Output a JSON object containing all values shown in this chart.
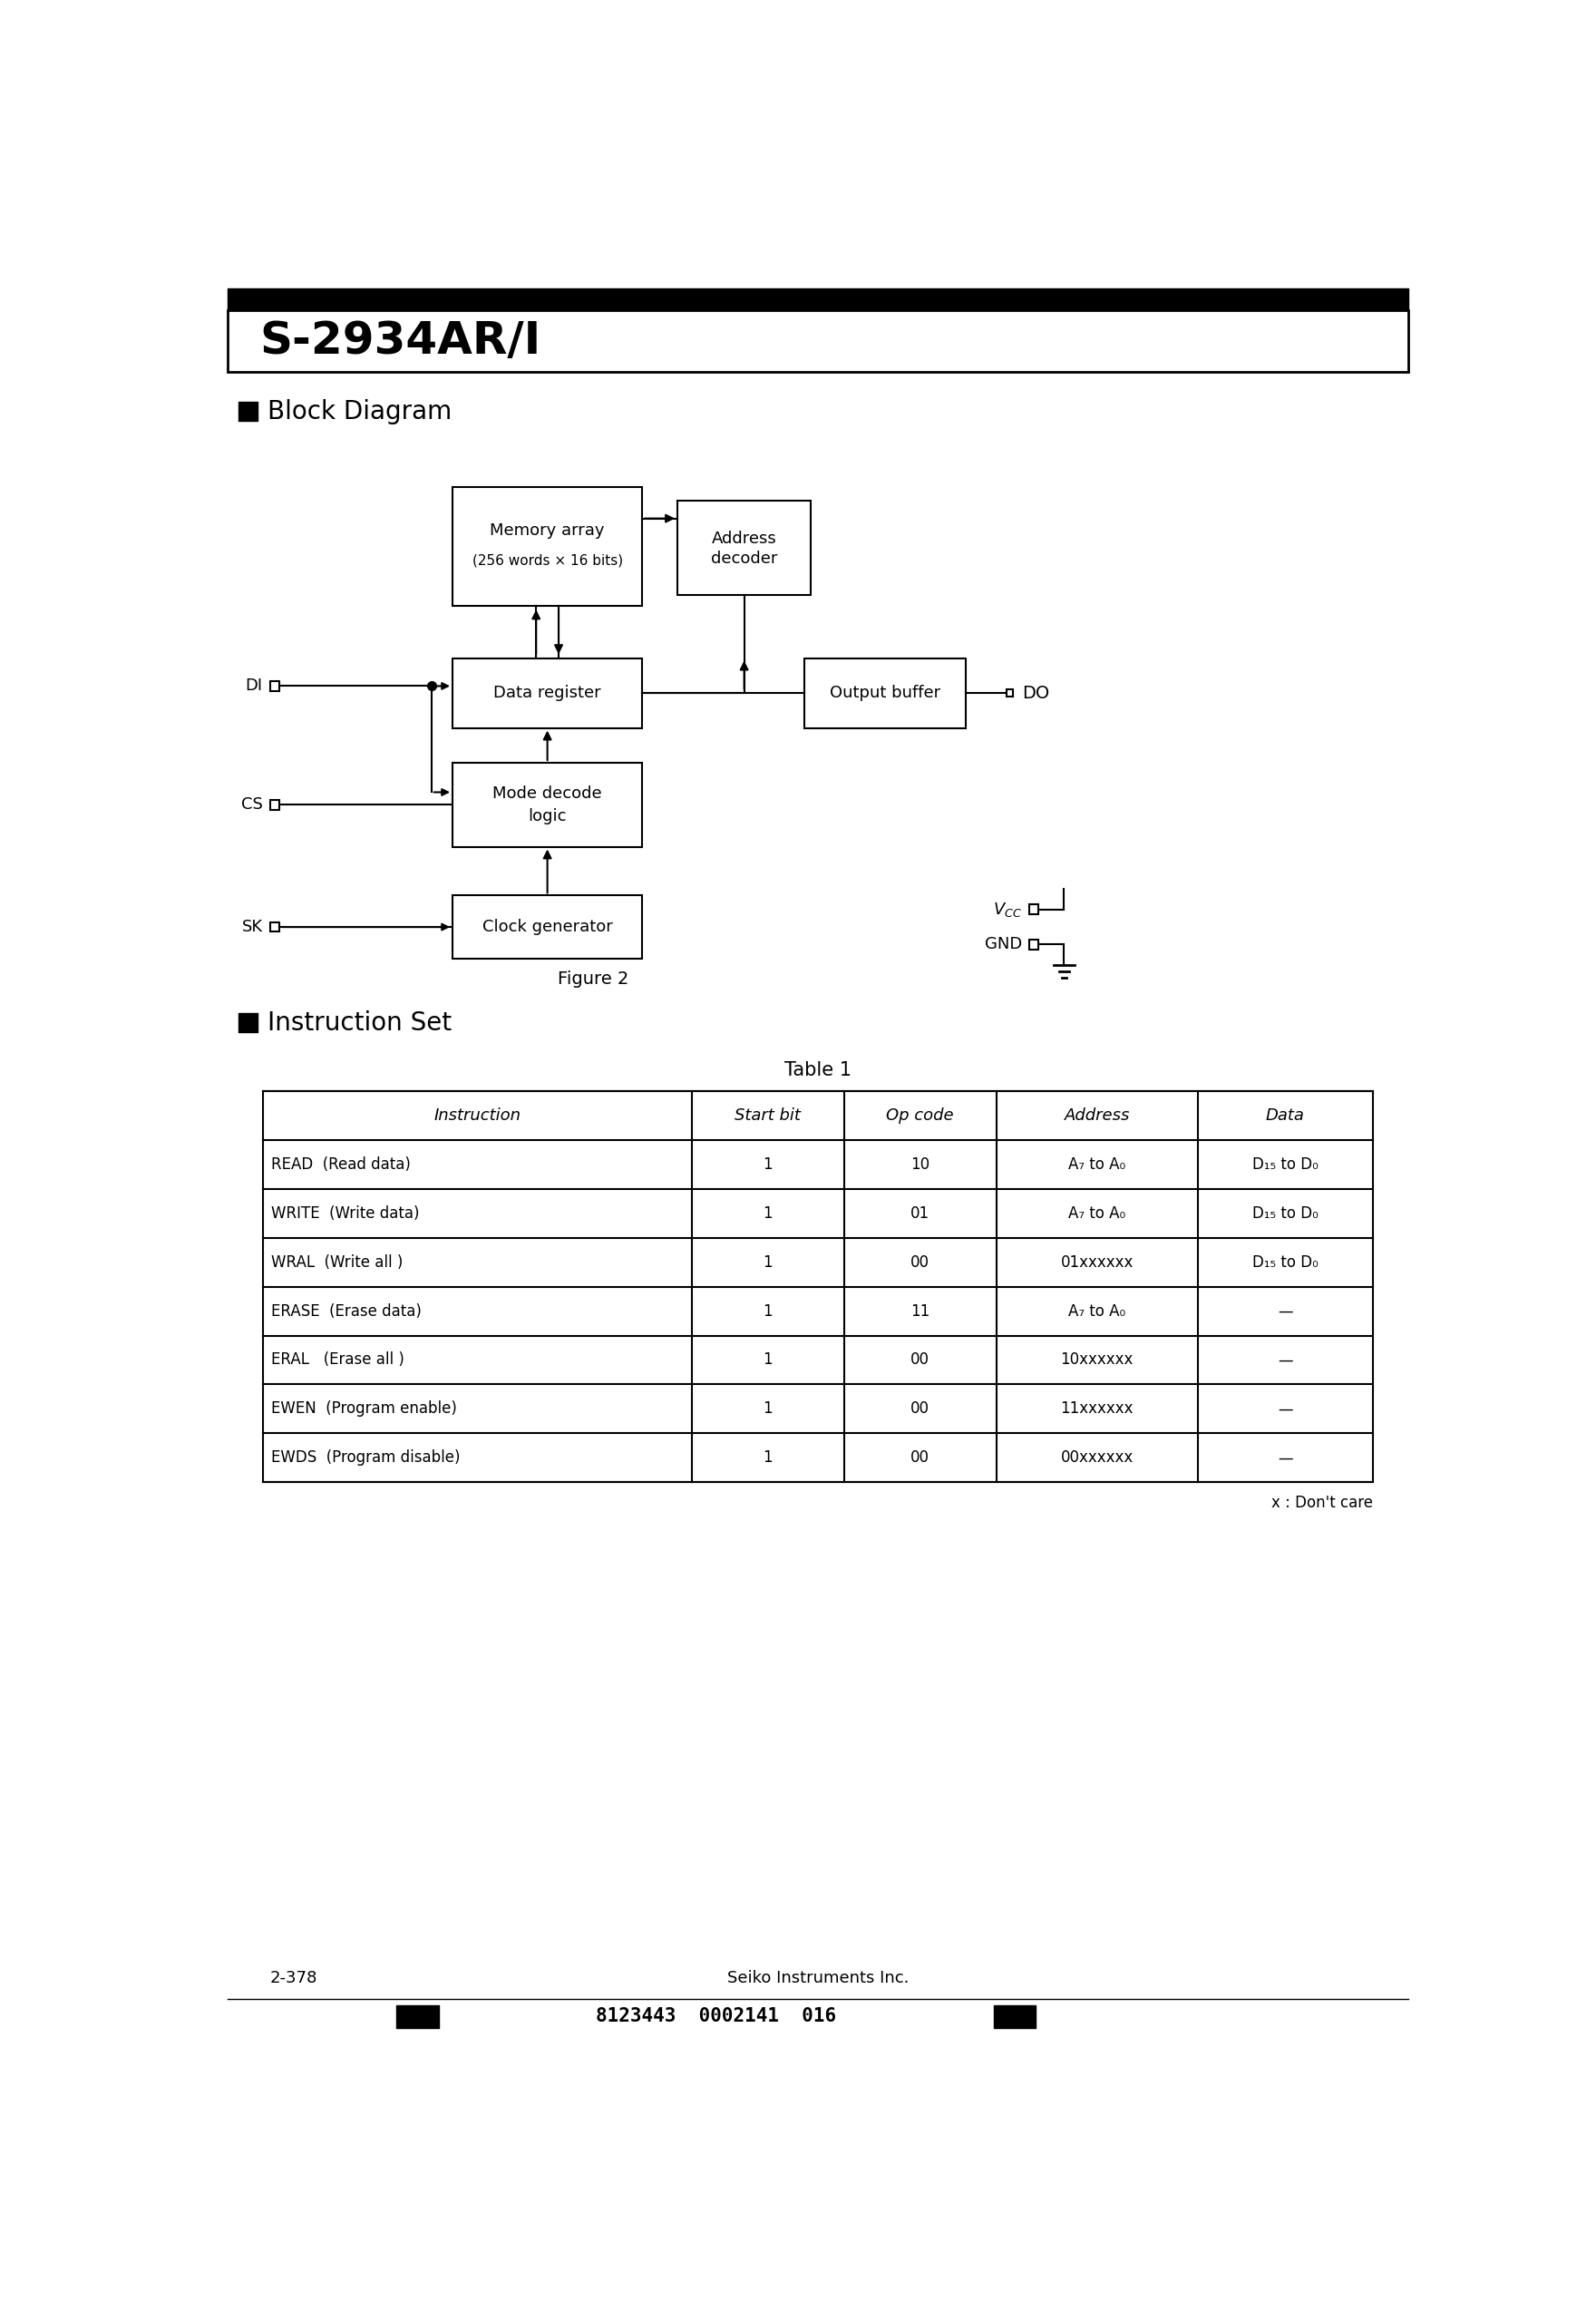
{
  "title": "S-2934AR/I",
  "page_num": "2-378",
  "publisher": "Seiko Instruments Inc.",
  "barcode": "8123443  0002141  016",
  "section1": "Block Diagram",
  "section2": "Instruction Set",
  "figure_label": "Figure 2",
  "table_label": "Table 1",
  "table_note": "x : Don't care",
  "table_headers": [
    "Instruction",
    "Start bit",
    "Op code",
    "Address",
    "Data"
  ],
  "table_rows": [
    [
      "READ  (Read data)",
      "1",
      "10",
      "A₇ to A₀",
      "D₁₅ to D₀"
    ],
    [
      "WRITE  (Write data)",
      "1",
      "01",
      "A₇ to A₀",
      "D₁₅ to D₀"
    ],
    [
      "WRAL  (Write all )",
      "1",
      "00",
      "01xxxxxx",
      "D₁₅ to D₀"
    ],
    [
      "ERASE  (Erase data)",
      "1",
      "11",
      "A₇ to A₀",
      "—"
    ],
    [
      "ERAL   (Erase all )",
      "1",
      "00",
      "10xxxxxx",
      "—"
    ],
    [
      "EWEN  (Program enable)",
      "1",
      "00",
      "11xxxxxx",
      "—"
    ],
    [
      "EWDS  (Program disable)",
      "1",
      "00",
      "00xxxxxx",
      "—"
    ]
  ],
  "bg_color": "#ffffff",
  "text_color": "#000000"
}
